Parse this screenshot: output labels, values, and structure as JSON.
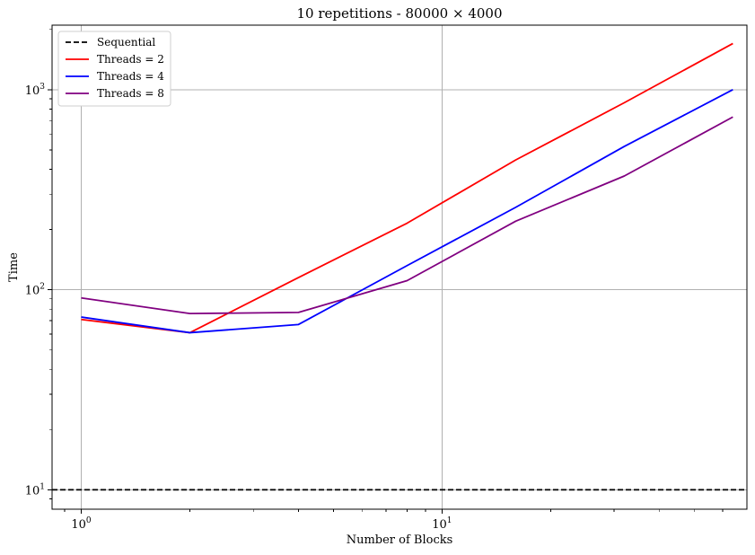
{
  "chart_data": {
    "type": "line",
    "title": "10 repetitions - 80000 × 4000",
    "xlabel": "Number of Blocks",
    "ylabel": "Time",
    "xscale": "log",
    "yscale": "log",
    "xlim": [
      0.83,
      70
    ],
    "ylim": [
      8,
      2100
    ],
    "xticks": [
      {
        "value": 1,
        "base": "10",
        "exp": "0"
      },
      {
        "value": 10,
        "base": "10",
        "exp": "1"
      }
    ],
    "yticks": [
      {
        "value": 10,
        "base": "10",
        "exp": "1"
      },
      {
        "value": 100,
        "base": "10",
        "exp": "2"
      },
      {
        "value": 1000,
        "base": "10",
        "exp": "3"
      }
    ],
    "grid": true,
    "legend_position": "top-left",
    "series": [
      {
        "name": "Sequential",
        "style": "dashed",
        "color": "#000000",
        "type": "hline",
        "y": 10
      },
      {
        "name": "Threads = 2",
        "style": "solid",
        "color": "#ff0000",
        "x": [
          1,
          2,
          4,
          8,
          16,
          32,
          64
        ],
        "values": [
          71,
          61,
          115,
          215,
          445,
          860,
          1700
        ]
      },
      {
        "name": "Threads = 4",
        "style": "solid",
        "color": "#0000ff",
        "x": [
          1,
          2,
          4,
          8,
          16,
          32,
          64
        ],
        "values": [
          73,
          61,
          67,
          132,
          258,
          520,
          1000
        ]
      },
      {
        "name": "Threads = 8",
        "style": "solid",
        "color": "#800080",
        "x": [
          1,
          2,
          4,
          8,
          16,
          32,
          64
        ],
        "values": [
          91,
          76,
          77,
          111,
          220,
          370,
          730
        ]
      }
    ]
  }
}
